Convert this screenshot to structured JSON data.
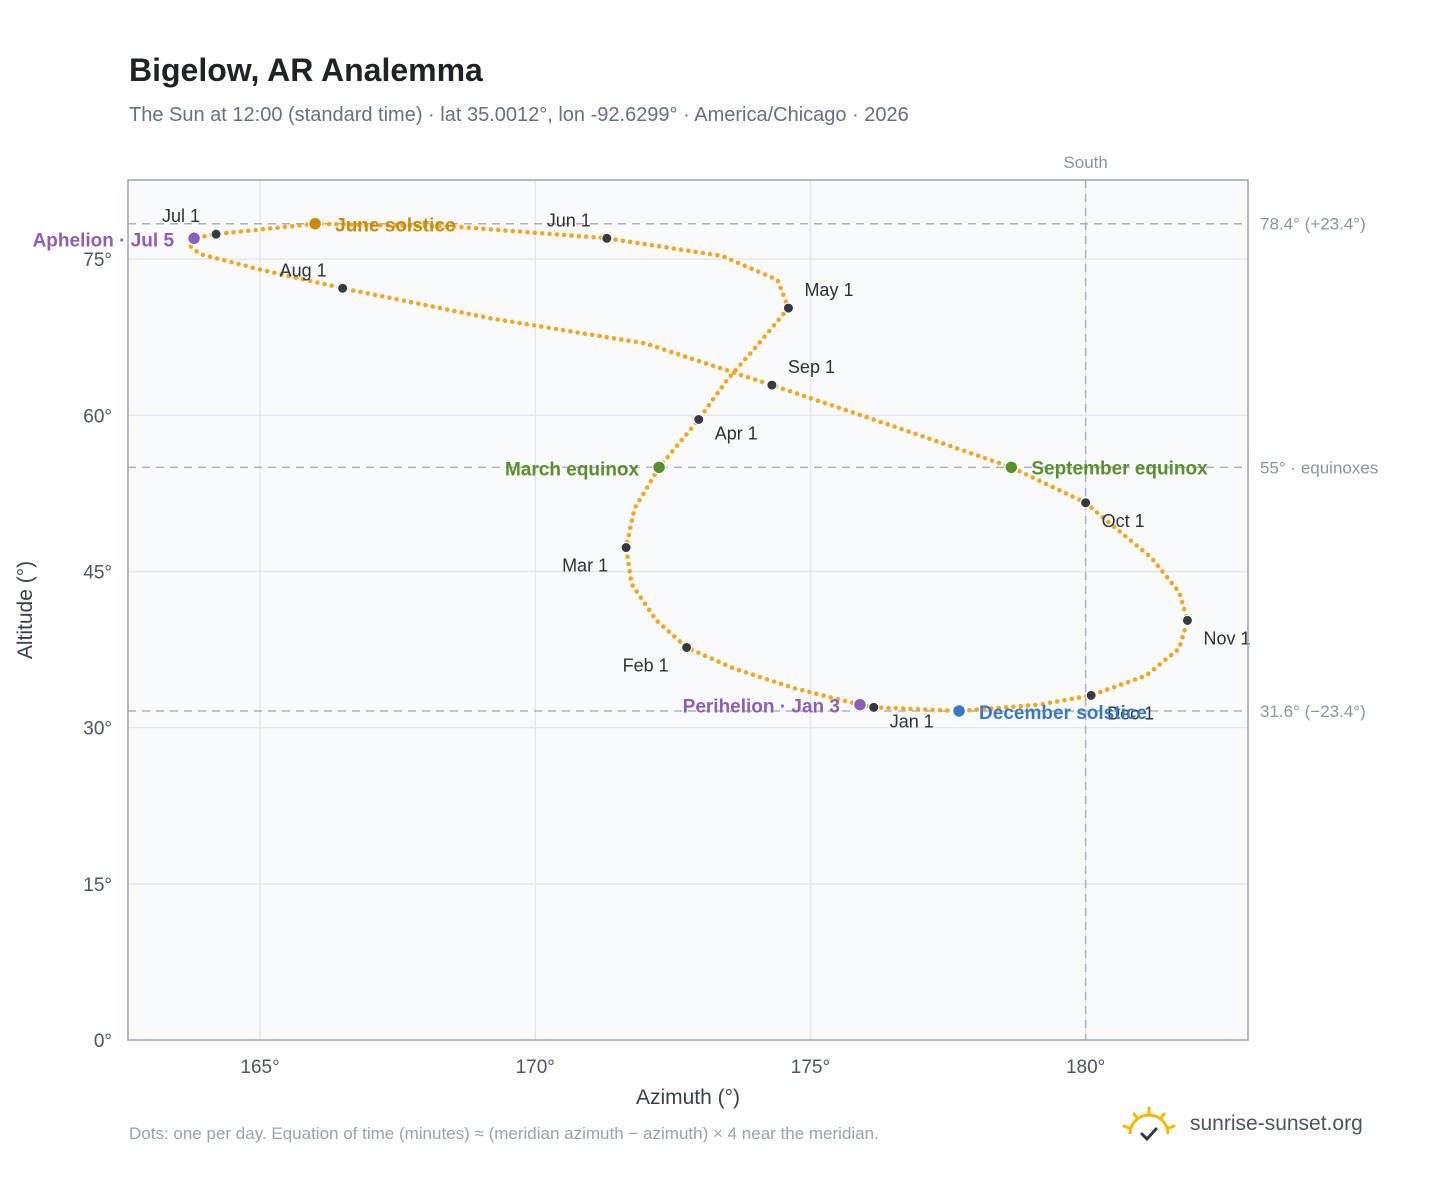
{
  "title": "Bigelow, AR Analemma",
  "subtitle": "The Sun at 12:00 (standard time) · lat 35.0012°, lon -92.6299° · America/Chicago · 2026",
  "footnote": "Dots: one per day. Equation of time (minutes) ≈ (meridian azimuth − azimuth) × 4 near the meridian.",
  "brand": {
    "text": "sunrise-sunset.org",
    "icon": "sun-logo-icon"
  },
  "colors": {
    "curve": "#f5a623",
    "month_dot": "#343a40",
    "aphelion": "#8b5fb8",
    "june_solstice": "#cc8a00",
    "equinox": "#5a8f2e",
    "december_solstice": "#3b78c2",
    "grid": "#e4e8ee",
    "plot_bg": "#f8fafc",
    "frame": "#9aa5b4",
    "ref_line": "#a9b3bf"
  },
  "chart_data": {
    "type": "scatter",
    "xlabel": "Azimuth (°)",
    "ylabel": "Altitude (°)",
    "xlim": [
      162.6,
      182.95
    ],
    "ylim": [
      0,
      82.6
    ],
    "xticks": [
      165,
      170,
      175,
      180
    ],
    "yticks": [
      0,
      15,
      30,
      45,
      60,
      75
    ],
    "tick_suffix": "°",
    "grid": true,
    "meridian": {
      "azimuth": 180,
      "label": "South"
    },
    "reference_lines": [
      {
        "altitude": 78.4,
        "label": "78.4° (+23.4°)"
      },
      {
        "altitude": 55,
        "label": "55° · equinoxes"
      },
      {
        "altitude": 31.6,
        "label": "31.6° (−23.4°)"
      }
    ],
    "analemma_path": [
      [
        176.15,
        31.95
      ],
      [
        177.7,
        31.6
      ],
      [
        179.15,
        32.2
      ],
      [
        180.1,
        33.1
      ],
      [
        181.1,
        35.0
      ],
      [
        181.7,
        37.6
      ],
      [
        181.85,
        40.3
      ],
      [
        181.7,
        43.0
      ],
      [
        181.2,
        46.3
      ],
      [
        180.4,
        49.8
      ],
      [
        180.0,
        51.6
      ],
      [
        178.65,
        55.0
      ],
      [
        176.7,
        58.6
      ],
      [
        174.3,
        62.9
      ],
      [
        172.0,
        66.9
      ],
      [
        169.2,
        69.3
      ],
      [
        166.5,
        72.2
      ],
      [
        165.0,
        74.0
      ],
      [
        163.9,
        75.5
      ],
      [
        163.7,
        76.4
      ],
      [
        163.8,
        77.0
      ],
      [
        164.2,
        77.4
      ],
      [
        166.0,
        78.4
      ],
      [
        168.6,
        78.1
      ],
      [
        171.3,
        77.0
      ],
      [
        173.4,
        75.3
      ],
      [
        174.4,
        73.0
      ],
      [
        174.6,
        70.3
      ],
      [
        174.0,
        66.5
      ],
      [
        173.5,
        63.5
      ],
      [
        172.97,
        59.6
      ],
      [
        172.25,
        55.0
      ],
      [
        171.8,
        51.0
      ],
      [
        171.65,
        47.3
      ],
      [
        171.75,
        43.8
      ],
      [
        172.2,
        40.3
      ],
      [
        172.75,
        37.7
      ],
      [
        173.6,
        35.7
      ],
      [
        174.7,
        33.8
      ],
      [
        175.9,
        32.2
      ],
      [
        176.15,
        31.95
      ]
    ],
    "month_markers": [
      {
        "label": "Jan 1",
        "azimuth": 176.15,
        "altitude": 31.95
      },
      {
        "label": "Feb 1",
        "azimuth": 172.75,
        "altitude": 37.7
      },
      {
        "label": "Mar 1",
        "azimuth": 171.65,
        "altitude": 47.3
      },
      {
        "label": "Apr 1",
        "azimuth": 172.97,
        "altitude": 59.6
      },
      {
        "label": "May 1",
        "azimuth": 174.6,
        "altitude": 70.3
      },
      {
        "label": "Jun 1",
        "azimuth": 171.3,
        "altitude": 77.0
      },
      {
        "label": "Jul 1",
        "azimuth": 164.2,
        "altitude": 77.4
      },
      {
        "label": "Aug 1",
        "azimuth": 166.5,
        "altitude": 72.2
      },
      {
        "label": "Sep 1",
        "azimuth": 174.3,
        "altitude": 62.9
      },
      {
        "label": "Oct 1",
        "azimuth": 180.0,
        "altitude": 51.6
      },
      {
        "label": "Nov 1",
        "azimuth": 181.85,
        "altitude": 40.3
      },
      {
        "label": "Dec 1",
        "azimuth": 180.1,
        "altitude": 33.1
      }
    ],
    "events": [
      {
        "label": "Aphelion · Jul 5",
        "azimuth": 163.8,
        "altitude": 77.0,
        "color": "#8b5fb8"
      },
      {
        "label": "June solstice",
        "azimuth": 166.0,
        "altitude": 78.4,
        "color": "#cc8a00"
      },
      {
        "label": "March equinox",
        "azimuth": 172.25,
        "altitude": 55.0,
        "color": "#5a8f2e"
      },
      {
        "label": "September equinox",
        "azimuth": 178.65,
        "altitude": 55.0,
        "color": "#5a8f2e"
      },
      {
        "label": "Perihelion · Jan 3",
        "azimuth": 175.9,
        "altitude": 32.2,
        "color": "#8b5fb8"
      },
      {
        "label": "December solstice",
        "azimuth": 177.7,
        "altitude": 31.6,
        "color": "#3b78c2"
      }
    ]
  }
}
